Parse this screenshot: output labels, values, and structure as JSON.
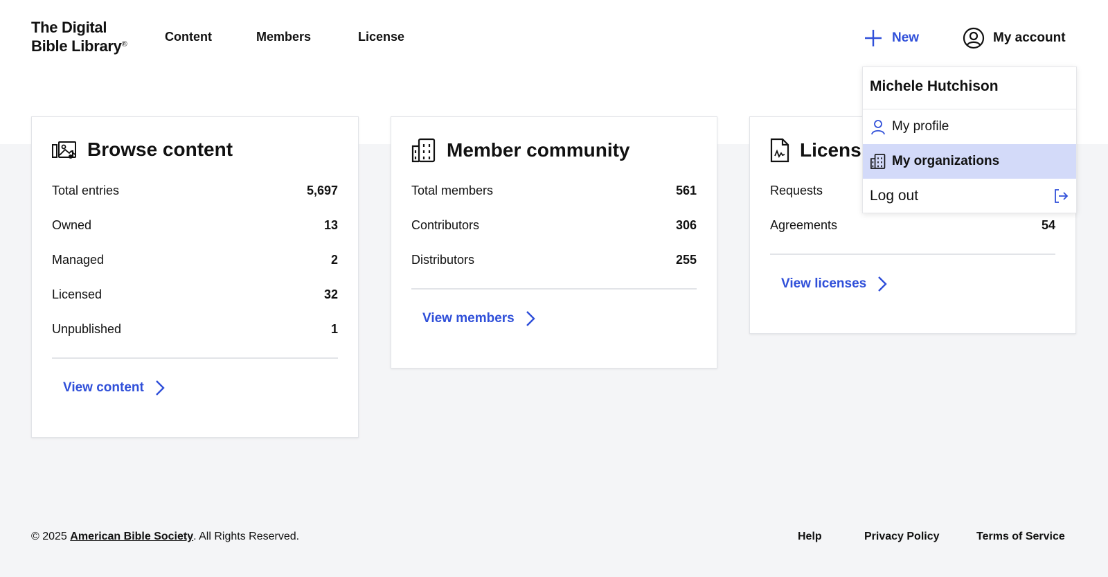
{
  "header": {
    "logo_line1": "The Digital",
    "logo_line2": "Bible Library",
    "logo_mark": "®",
    "nav": [
      "Content",
      "Members",
      "License"
    ],
    "new_label": "New",
    "account_label": "My account"
  },
  "cards": [
    {
      "title": "Browse content",
      "icon": "media-library-icon",
      "rows": [
        {
          "label": "Total entries",
          "value": "5,697"
        },
        {
          "label": "Owned",
          "value": "13"
        },
        {
          "label": "Managed",
          "value": "2"
        },
        {
          "label": "Licensed",
          "value": "32"
        },
        {
          "label": "Unpublished",
          "value": "1"
        }
      ],
      "link": "View content"
    },
    {
      "title": "Member community",
      "icon": "building-icon",
      "rows": [
        {
          "label": "Total members",
          "value": "561"
        },
        {
          "label": "Contributors",
          "value": "306"
        },
        {
          "label": "Distributors",
          "value": "255"
        }
      ],
      "link": "View members"
    },
    {
      "title": "Licens",
      "icon": "document-signature-icon",
      "rows": [
        {
          "label": "Requests",
          "value": ""
        },
        {
          "label": "Agreements",
          "value": "54"
        }
      ],
      "link": "View licenses"
    }
  ],
  "account_menu": {
    "user_name": "Michele Hutchison",
    "items": [
      {
        "label": "My profile",
        "icon": "user-icon"
      },
      {
        "label": "My organizations",
        "icon": "building-icon"
      }
    ],
    "logout_label": "Log out"
  },
  "footer": {
    "copyright_prefix": "© 2025 ",
    "org_link": "American Bible Society",
    "copyright_suffix": ". All Rights Reserved.",
    "links": [
      "Help",
      "Privacy Policy",
      "Terms of Service"
    ]
  },
  "colors": {
    "accent": "#2f4fd9",
    "highlight": "#d3daf9",
    "background": "#f4f5f7"
  }
}
